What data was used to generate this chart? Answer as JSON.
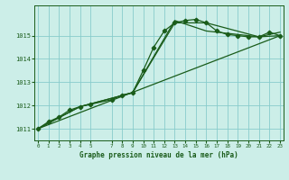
{
  "title": "Graphe pression niveau de la mer (hPa)",
  "bg_color": "#cceee8",
  "grid_color": "#88cccc",
  "line_color": "#1a5c1a",
  "x_ticks": [
    0,
    1,
    2,
    3,
    4,
    5,
    7,
    8,
    9,
    10,
    11,
    12,
    13,
    14,
    15,
    16,
    17,
    18,
    19,
    20,
    21,
    22,
    23
  ],
  "y_min": 1010.5,
  "y_max": 1016.3,
  "y_ticks": [
    1011,
    1012,
    1013,
    1014,
    1015
  ],
  "series_main": {
    "x": [
      0,
      1,
      2,
      3,
      4,
      5,
      7,
      8,
      9,
      10,
      11,
      12,
      13,
      14,
      15,
      16,
      17,
      18,
      19,
      20,
      21,
      22,
      23
    ],
    "y": [
      1011.0,
      1011.3,
      1011.5,
      1011.8,
      1011.95,
      1012.05,
      1012.25,
      1012.45,
      1012.55,
      1013.5,
      1014.5,
      1015.2,
      1015.55,
      1015.65,
      1015.7,
      1015.55,
      1015.2,
      1015.05,
      1015.0,
      1014.95,
      1014.95,
      1015.15,
      1015.0
    ]
  },
  "series_line1": {
    "x": [
      0,
      23
    ],
    "y": [
      1011.0,
      1015.0
    ]
  },
  "series_line2": {
    "x": [
      0,
      4,
      9,
      13,
      16,
      21,
      23
    ],
    "y": [
      1011.0,
      1011.95,
      1012.55,
      1015.55,
      1015.55,
      1014.95,
      1015.15
    ]
  },
  "series_line3": {
    "x": [
      0,
      4,
      9,
      13,
      16,
      21,
      23
    ],
    "y": [
      1011.0,
      1011.95,
      1012.55,
      1015.65,
      1015.2,
      1014.95,
      1015.0
    ]
  }
}
